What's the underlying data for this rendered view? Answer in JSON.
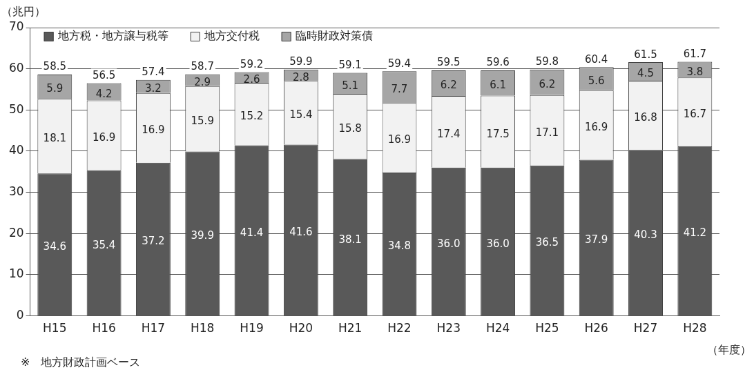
{
  "chart_data": {
    "type": "bar",
    "stacked": true,
    "ylabel": "（兆円）",
    "xlabel": "（年度）",
    "annotations": [
      "※　地方財政計画ベース"
    ],
    "categories": [
      "H15",
      "H16",
      "H17",
      "H18",
      "H19",
      "H20",
      "H21",
      "H22",
      "H23",
      "H24",
      "H25",
      "H26",
      "H27",
      "H28"
    ],
    "series": [
      {
        "name": "地方税・地方譲与税等",
        "color": "#595959",
        "values": [
          34.6,
          35.4,
          37.2,
          39.9,
          41.4,
          41.6,
          38.1,
          34.8,
          36.0,
          36.0,
          36.5,
          37.9,
          40.3,
          41.2
        ],
        "value_labels": [
          "34.6",
          "35.4",
          "37.2",
          "39.9",
          "41.4",
          "41.6",
          "38.1",
          "34.8",
          "36.0",
          "36.0",
          "36.5",
          "37.9",
          "40.3",
          "41.2"
        ]
      },
      {
        "name": "地方交付税",
        "color": "#f2f2f2",
        "values": [
          18.1,
          16.9,
          16.9,
          15.9,
          15.2,
          15.4,
          15.8,
          16.9,
          17.4,
          17.5,
          17.1,
          16.9,
          16.8,
          16.7
        ],
        "value_labels": [
          "18.1",
          "16.9",
          "16.9",
          "15.9",
          "15.2",
          "15.4",
          "15.8",
          "16.9",
          "17.4",
          "17.5",
          "17.1",
          "16.9",
          "16.8",
          "16.7"
        ]
      },
      {
        "name": "臨時財政対策債",
        "color": "#a6a6a6",
        "values": [
          5.9,
          4.2,
          3.2,
          2.9,
          2.6,
          2.8,
          5.1,
          7.7,
          6.2,
          6.1,
          6.2,
          5.6,
          4.5,
          3.8
        ],
        "value_labels": [
          "5.9",
          "4.2",
          "3.2",
          "2.9",
          "2.6",
          "2.8",
          "5.1",
          "7.7",
          "6.2",
          "6.1",
          "6.2",
          "5.6",
          "4.5",
          "3.8"
        ]
      }
    ],
    "totals": [
      "58.5",
      "56.5",
      "57.4",
      "58.7",
      "59.2",
      "59.9",
      "59.1",
      "59.4",
      "59.5",
      "59.6",
      "59.8",
      "60.4",
      "61.5",
      "61.7"
    ],
    "ylim": [
      0,
      70
    ],
    "yticks": [
      0,
      10,
      20,
      30,
      40,
      50,
      60,
      70
    ],
    "grid": "y",
    "legend": "top left"
  }
}
